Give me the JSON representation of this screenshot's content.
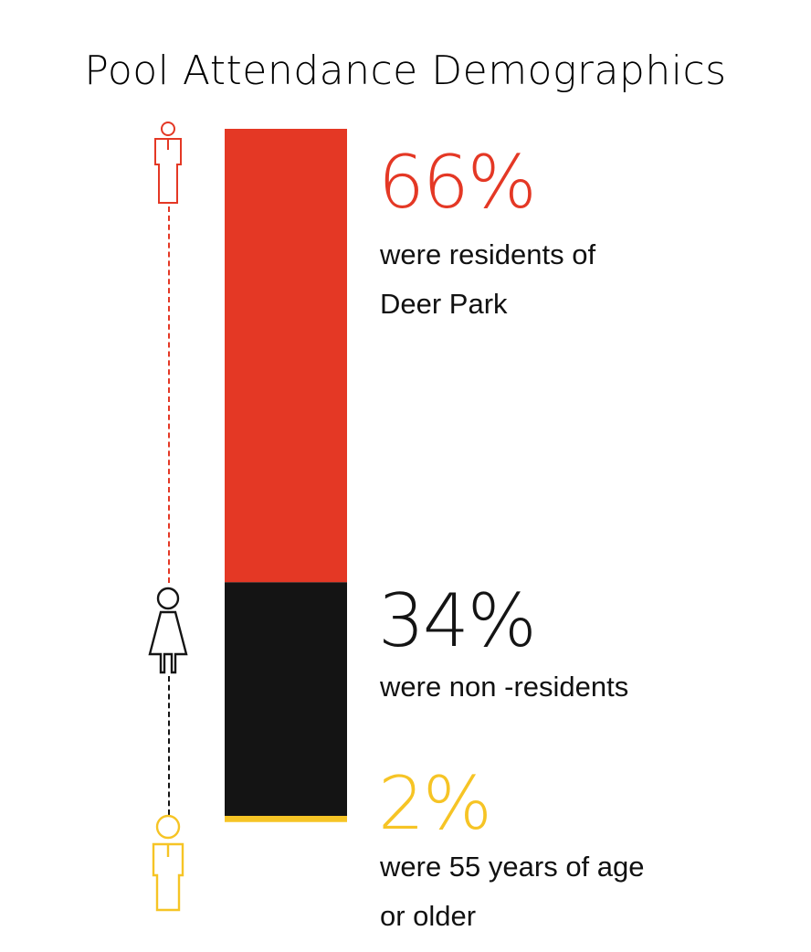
{
  "title": "Pool Attendance Demographics",
  "colors": {
    "residents": "#e43825",
    "non_residents": "#141414",
    "seniors": "#f6c425"
  },
  "chart_data": {
    "type": "bar",
    "title": "Pool Attendance Demographics",
    "categories": [
      "residents of Deer Park",
      "non -residents",
      "55 years of age or older"
    ],
    "values": [
      66,
      34,
      2
    ],
    "unit": "%",
    "stacked": true,
    "data_labels": [
      "66%",
      "34%",
      "2%"
    ],
    "descriptions": [
      [
        "were residents of",
        "Deer Park"
      ],
      [
        "were non -residents"
      ],
      [
        "were 55 years of age",
        "or older"
      ]
    ],
    "icons": [
      "male-person-icon",
      "female-person-icon",
      "male-person-icon"
    ]
  }
}
